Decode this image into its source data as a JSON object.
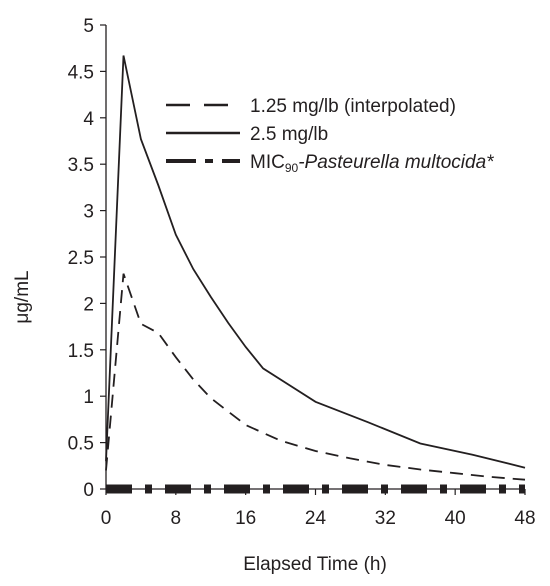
{
  "chart_data": {
    "type": "line",
    "title": "",
    "xlabel": "Elapsed Time (h)",
    "ylabel": "μg/mL",
    "xlim": [
      0,
      48
    ],
    "ylim": [
      0,
      5
    ],
    "x_ticks": [
      0,
      8,
      16,
      24,
      32,
      40,
      48
    ],
    "x_tick_labels": [
      "0",
      "8",
      "16",
      "24",
      "32",
      "40",
      "48"
    ],
    "y_ticks": [
      0,
      0.5,
      1,
      1.5,
      2,
      2.5,
      3,
      3.5,
      4,
      4.5,
      5
    ],
    "y_tick_labels": [
      "0",
      "0.5",
      "1",
      "1.5",
      "2",
      "2.5",
      "3",
      "3.5",
      "4",
      "4.5",
      "5"
    ],
    "grid": false,
    "legend_position": "top-right",
    "legend": [
      {
        "label": "1.25 mg/lb (interpolated)",
        "style": "dashed"
      },
      {
        "label": "2.5 mg/lb",
        "style": "solid"
      },
      {
        "label_prefix": "MIC",
        "label_sub": "90",
        "label_suffix": "-Pasteurella multocida*",
        "style": "dash-dot"
      }
    ],
    "series": [
      {
        "name": "1.25 mg/lb (interpolated)",
        "style": "dashed",
        "x": [
          0,
          2,
          4,
          6,
          8,
          10,
          12,
          16,
          20,
          24,
          28,
          32,
          36,
          40,
          44,
          48
        ],
        "y": [
          0.2,
          2.32,
          1.78,
          1.68,
          1.42,
          1.18,
          0.98,
          0.69,
          0.52,
          0.41,
          0.33,
          0.26,
          0.21,
          0.17,
          0.13,
          0.1
        ]
      },
      {
        "name": "2.5 mg/lb",
        "style": "solid",
        "x": [
          0,
          2,
          4,
          6,
          8,
          10,
          12,
          14,
          16,
          18,
          24,
          30,
          36,
          42,
          48
        ],
        "y": [
          0.3,
          4.67,
          3.77,
          3.27,
          2.74,
          2.37,
          2.07,
          1.79,
          1.53,
          1.3,
          0.94,
          0.72,
          0.49,
          0.37,
          0.23
        ]
      },
      {
        "name": "MIC90-Pasteurella multocida*",
        "style": "dash-dot",
        "x": [
          0,
          48
        ],
        "y": [
          0,
          0
        ]
      }
    ]
  }
}
